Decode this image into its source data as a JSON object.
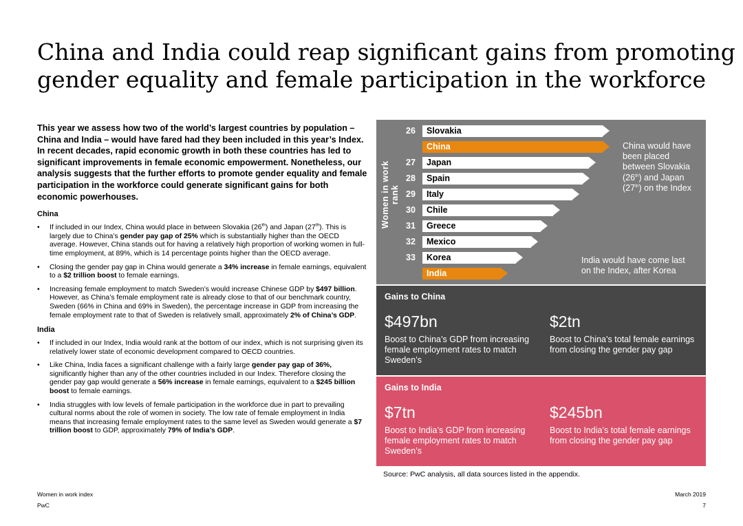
{
  "title": {
    "line1": "China and India could reap significant gains from promoting",
    "line2": "gender equality and female participation in the workforce"
  },
  "intro": "This year we assess how two of the world’s largest countries by population – China and India – would have fared had they been included in this year’s Index. In recent decades, rapid economic growth in both these countries has led to significant improvements in female economic empowerment. Nonetheless, our analysis suggests that the further efforts to promote gender equality and female participation in the workforce could generate significant gains for both economic powerhouses.",
  "china_section": {
    "heading": "China",
    "b1": {
      "p1": "If included in our Index, China would place in between Slovakia (26",
      "sup1": "th",
      "p2": ") and Japan (27",
      "sup2": "th",
      "p3": "). This is largely due to China’s ",
      "bold1": "gender pay gap of 25%",
      "p4": " which is substantially higher than the OECD average. However, China stands out for having a relatively high proportion of working women in full-time employment, at 89%, which is 14 percentage points higher than the OECD average."
    },
    "b2": {
      "p1": "Closing the gender pay gap in China would generate a ",
      "bold1": "34% increase",
      "p2": " in female earnings, equivalent to a ",
      "bold2": "$2 trillion boost",
      "p3": " to female earnings."
    },
    "b3": {
      "p1": "Increasing female employment to match Sweden’s would increase Chinese GDP by ",
      "bold1": "$497 billion",
      "p2": ". However, as China’s female employment rate is already close to that of our benchmark country, Sweden (66% in China and 69% in Sweden), the percentage increase in GDP from increasing the female employment rate to that of Sweden is relatively small, approximately ",
      "bold2": "2% of China’s GDP",
      "p3": "."
    }
  },
  "india_section": {
    "heading": "India",
    "b1": {
      "p1": "If included in our Index, India would rank at the bottom of our index, which is not surprising given its relatively lower state of economic development compared to OECD countries."
    },
    "b2": {
      "p1": "Like China, India faces a significant challenge with a fairly large ",
      "bold1": "gender pay gap of 36%,",
      "p2": " significantly higher than any of the other countries included in our Index. Therefore closing the gender pay gap would generate a ",
      "bold2": "56% increase",
      "p3": " in female earnings, equivalent to a ",
      "bold3": "$245 billion boost",
      "p4": " to female earnings."
    },
    "b3": {
      "p1": "India struggles with low levels of female participation in the workforce due in part to prevailing cultural norms about the role of women in society. The low rate of female employment in India means that increasing female employment rates to the same level as Sweden would generate a ",
      "bold1": "$7 trillion boost",
      "p2": " to GDP, approximately ",
      "bold2": "79% of India’s GDP",
      "p3": "."
    }
  },
  "ranking": {
    "axis_label": "Women in work rank",
    "highlight_color": "#e8870f",
    "rows": [
      {
        "rank": "26",
        "country": "Slovakia",
        "highlight": false
      },
      {
        "rank": "",
        "country": "China",
        "highlight": true
      },
      {
        "rank": "27",
        "country": "Japan",
        "highlight": false
      },
      {
        "rank": "28",
        "country": "Spain",
        "highlight": false
      },
      {
        "rank": "29",
        "country": "Italy",
        "highlight": false
      },
      {
        "rank": "30",
        "country": "Chile",
        "highlight": false
      },
      {
        "rank": "31",
        "country": "Greece",
        "highlight": false
      },
      {
        "rank": "32",
        "country": "Mexico",
        "highlight": false
      },
      {
        "rank": "33",
        "country": "Korea",
        "highlight": false
      },
      {
        "rank": "",
        "country": "India",
        "highlight": true
      }
    ],
    "china_note": {
      "l1": "China would have",
      "l2": "been placed",
      "l3": "between Slovakia",
      "l4a": "(26",
      "l4sup": "th",
      "l4b": ") and Japan",
      "l5a": "(27",
      "l5sup": "th",
      "l5b": ") on the Index"
    },
    "india_note": {
      "l1": "India would have come last",
      "l2": "on the Index, after Korea"
    }
  },
  "gains_china": {
    "title": "Gains to China",
    "color": "#474747",
    "left_value": "$497bn",
    "left_desc": "Boost to China’s GDP from increasing female employment rates to match Sweden’s",
    "right_value": "$2tn",
    "right_desc": "Boost to China’s total female earnings from closing the gender pay gap"
  },
  "gains_india": {
    "title": "Gains to India",
    "color": "#d9516a",
    "left_value": "$7tn",
    "left_desc": "Boost to India’s GDP from increasing female employment rates to match Sweden’s",
    "right_value": "$245bn",
    "right_desc": "Boost to India’s total female earnings from closing the gender pay gap"
  },
  "source": "Source: PwC analysis, all data sources listed in the appendix.",
  "footer": {
    "doc_name": "Women in work index",
    "brand": "PwC",
    "date": "March 2019",
    "page": "7"
  }
}
